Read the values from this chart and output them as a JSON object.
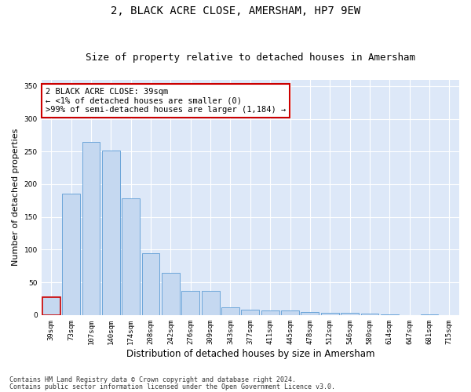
{
  "title": "2, BLACK ACRE CLOSE, AMERSHAM, HP7 9EW",
  "subtitle": "Size of property relative to detached houses in Amersham",
  "xlabel": "Distribution of detached houses by size in Amersham",
  "ylabel": "Number of detached properties",
  "categories": [
    "39sqm",
    "73sqm",
    "107sqm",
    "140sqm",
    "174sqm",
    "208sqm",
    "242sqm",
    "276sqm",
    "309sqm",
    "343sqm",
    "377sqm",
    "411sqm",
    "445sqm",
    "478sqm",
    "512sqm",
    "546sqm",
    "580sqm",
    "614sqm",
    "647sqm",
    "681sqm",
    "715sqm"
  ],
  "bar_heights": [
    27,
    185,
    265,
    252,
    178,
    95,
    65,
    37,
    37,
    12,
    8,
    7,
    7,
    5,
    3,
    3,
    2,
    1,
    0,
    1,
    0
  ],
  "bar_color": "#c5d8f0",
  "bar_edge_color": "#5b9bd5",
  "highlight_bar_index": 0,
  "highlight_bar_edge_color": "#cc0000",
  "annotation_box_text": "2 BLACK ACRE CLOSE: 39sqm\n← <1% of detached houses are smaller (0)\n>99% of semi-detached houses are larger (1,184) →",
  "ylim": [
    0,
    360
  ],
  "yticks": [
    0,
    50,
    100,
    150,
    200,
    250,
    300,
    350
  ],
  "bg_color": "#dde8f8",
  "footer_line1": "Contains HM Land Registry data © Crown copyright and database right 2024.",
  "footer_line2": "Contains public sector information licensed under the Open Government Licence v3.0.",
  "title_fontsize": 10,
  "subtitle_fontsize": 9,
  "xlabel_fontsize": 8.5,
  "ylabel_fontsize": 8,
  "tick_fontsize": 6.5,
  "annotation_fontsize": 7.5,
  "footer_fontsize": 6
}
